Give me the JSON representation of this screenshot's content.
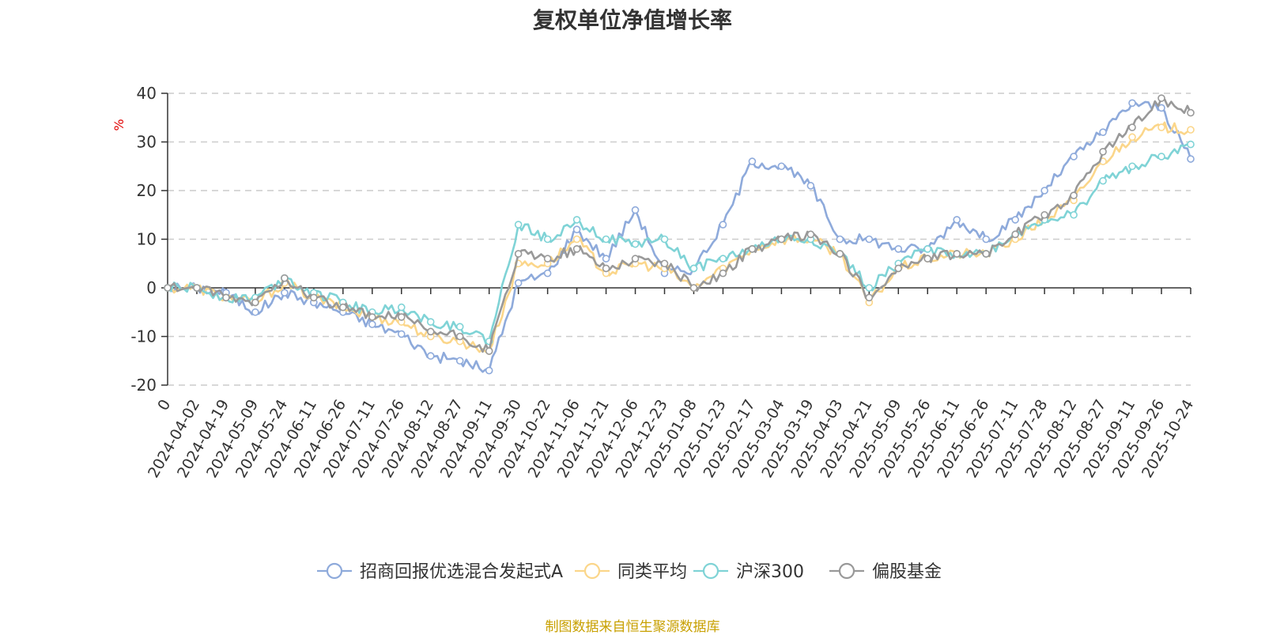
{
  "chart_data": {
    "type": "line",
    "title": "复权单位净值增长率",
    "unit": "%",
    "ylim": [
      -20,
      40
    ],
    "yticks": [
      -20,
      -10,
      0,
      10,
      20,
      30,
      40
    ],
    "x_start_label": "0",
    "categories": [
      "2024-04-02",
      "2024-04-19",
      "2024-05-09",
      "2024-05-24",
      "2024-06-11",
      "2024-06-26",
      "2024-07-11",
      "2024-07-26",
      "2024-08-12",
      "2024-08-27",
      "2024-09-11",
      "2024-09-30",
      "2024-10-22",
      "2024-11-06",
      "2024-11-21",
      "2024-12-06",
      "2024-12-23",
      "2025-01-08",
      "2025-01-23",
      "2025-02-17",
      "2025-03-04",
      "2025-03-19",
      "2025-04-03",
      "2025-04-21",
      "2025-05-09",
      "2025-05-26",
      "2025-06-11",
      "2025-06-26",
      "2025-07-11",
      "2025-07-28",
      "2025-08-12",
      "2025-08-27",
      "2025-09-11",
      "2025-09-26",
      "2025-10-24"
    ],
    "grid": "horizontal-dashed",
    "legend_position": "bottom",
    "series": [
      {
        "name": "招商回报优选混合发起式A",
        "color": "#8eaadb",
        "values": [
          0,
          -1,
          -5,
          -1,
          -3,
          -5,
          -7.5,
          -9.5,
          -14,
          -15,
          -17,
          1,
          3,
          12,
          6,
          16,
          3,
          4,
          13,
          26,
          25,
          21,
          10,
          10,
          8,
          8,
          14,
          10,
          14,
          20,
          27,
          32,
          38,
          37,
          26.5
        ]
      },
      {
        "name": "同类平均",
        "color": "#fbd68a",
        "values": [
          0,
          -2,
          -3,
          1,
          -2,
          -4,
          -6,
          -7,
          -10,
          -11,
          -13,
          5,
          5,
          10,
          3,
          5,
          4,
          0,
          4,
          8,
          10,
          10,
          7,
          -3,
          4,
          6,
          7,
          7,
          10,
          14,
          18,
          26,
          31,
          33,
          32.5
        ]
      },
      {
        "name": "沪深300",
        "color": "#7fd3d6",
        "values": [
          0,
          -2,
          -2,
          2,
          -1,
          -3,
          -5,
          -4,
          -7,
          -8,
          -11,
          13,
          10,
          14,
          10,
          9,
          10,
          4,
          6,
          8,
          10,
          10,
          7,
          0,
          5,
          8,
          7,
          7,
          11,
          14,
          15,
          22,
          25,
          27,
          29.5
        ]
      },
      {
        "name": "偏股基金",
        "color": "#999999",
        "values": [
          0,
          -2,
          -3,
          2,
          -2,
          -4,
          -6,
          -6,
          -9,
          -10,
          -13,
          7,
          6,
          8,
          4,
          6,
          5,
          0,
          3,
          8,
          10,
          11,
          7,
          -2,
          4,
          6,
          7,
          7,
          11,
          15,
          19,
          28,
          33,
          39,
          36
        ]
      }
    ]
  },
  "source_note": "制图数据来自恒生聚源数据库"
}
